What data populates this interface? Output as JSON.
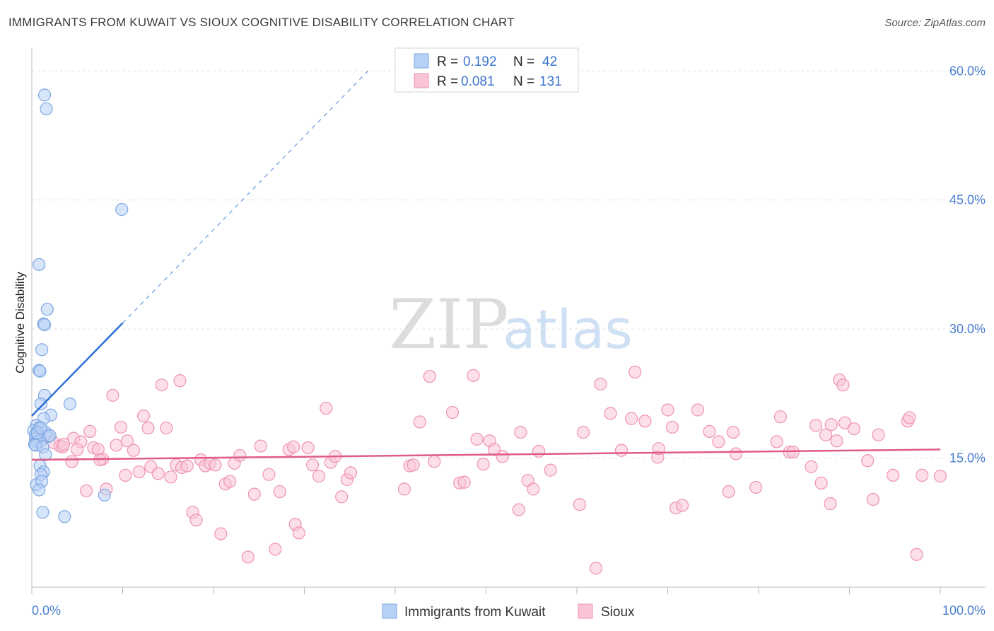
{
  "title": "IMMIGRANTS FROM KUWAIT VS SIOUX COGNITIVE DISABILITY CORRELATION CHART",
  "source": "Source: ZipAtlas.com",
  "watermark": {
    "zip": "ZIP",
    "atlas": "atlas"
  },
  "colors": {
    "blue_fill": "#b7d0f5",
    "blue_stroke": "#7ea7e2",
    "blue_line": "#2c6fd6",
    "pink_fill": "#f9c5d5",
    "pink_stroke": "#ee93b1",
    "pink_line": "#e05a8a"
  },
  "legend": {
    "r_label": "R =",
    "n_label": "N =",
    "series": [
      {
        "r": "0.192",
        "n": "42"
      },
      {
        "r": "0.081",
        "n": "131"
      }
    ]
  },
  "chart_data": {
    "type": "scatter",
    "title": "IMMIGRANTS FROM KUWAIT VS SIOUX COGNITIVE DISABILITY CORRELATION CHART",
    "xlabel": "",
    "ylabel": "Cognitive Disability",
    "xlim": [
      0,
      100
    ],
    "ylim": [
      0,
      62
    ],
    "x_tick_labels": [
      "0.0%",
      "100.0%"
    ],
    "y_ticks": [
      15,
      30,
      45,
      60
    ],
    "y_tick_labels": [
      "15.0%",
      "30.0%",
      "45.0%",
      "60.0%"
    ],
    "series": [
      {
        "name": "Immigrants from Kuwait",
        "r": 0.192,
        "n": 42,
        "trend": {
          "x_start": 0.0,
          "y_start": 19.9,
          "x_solid_end": 10.0,
          "y_solid_end": 30.7,
          "x_dash_end": 37.0,
          "y_dash_end": 60.0
        },
        "points": [
          [
            1.4,
            57.2
          ],
          [
            1.6,
            55.6
          ],
          [
            9.9,
            43.9
          ],
          [
            0.8,
            37.5
          ],
          [
            1.7,
            32.3
          ],
          [
            1.3,
            30.6
          ],
          [
            1.4,
            30.5
          ],
          [
            1.1,
            27.6
          ],
          [
            0.8,
            25.2
          ],
          [
            0.9,
            25.1
          ],
          [
            1.4,
            22.3
          ],
          [
            1.0,
            21.3
          ],
          [
            4.2,
            21.3
          ],
          [
            2.1,
            20.0
          ],
          [
            1.3,
            19.6
          ],
          [
            0.5,
            18.8
          ],
          [
            0.8,
            18.5
          ],
          [
            0.2,
            18.2
          ],
          [
            0.6,
            18.1
          ],
          [
            1.5,
            18.0
          ],
          [
            0.4,
            17.7
          ],
          [
            0.7,
            17.5
          ],
          [
            1.8,
            17.5
          ],
          [
            0.4,
            17.2
          ],
          [
            0.5,
            16.9
          ],
          [
            0.9,
            16.9
          ],
          [
            0.3,
            16.6
          ],
          [
            0.4,
            16.5
          ],
          [
            1.2,
            16.3
          ],
          [
            1.5,
            15.4
          ],
          [
            0.9,
            14.1
          ],
          [
            1.3,
            13.4
          ],
          [
            1.0,
            13.1
          ],
          [
            0.5,
            11.9
          ],
          [
            1.1,
            12.3
          ],
          [
            0.8,
            11.3
          ],
          [
            8.0,
            10.7
          ],
          [
            1.2,
            8.7
          ],
          [
            3.6,
            8.2
          ],
          [
            0.6,
            17.9
          ],
          [
            2.0,
            17.6
          ],
          [
            1.0,
            18.5
          ]
        ]
      },
      {
        "name": "Sioux",
        "r": 0.081,
        "n": 131,
        "trend": {
          "x_start": 0.0,
          "y_start": 14.8,
          "x_end": 100.0,
          "y_end": 16.0
        },
        "points": [
          [
            1.6,
            17.7
          ],
          [
            2.4,
            16.8
          ],
          [
            3.1,
            16.4
          ],
          [
            3.4,
            16.3
          ],
          [
            4.4,
            14.6
          ],
          [
            4.6,
            17.3
          ],
          [
            5.4,
            16.9
          ],
          [
            6.0,
            11.2
          ],
          [
            6.4,
            18.1
          ],
          [
            6.8,
            16.2
          ],
          [
            7.3,
            16.0
          ],
          [
            7.8,
            14.9
          ],
          [
            8.2,
            11.4
          ],
          [
            8.9,
            22.3
          ],
          [
            9.3,
            16.5
          ],
          [
            9.8,
            18.6
          ],
          [
            10.3,
            13.0
          ],
          [
            10.5,
            17.0
          ],
          [
            11.2,
            15.9
          ],
          [
            11.8,
            13.4
          ],
          [
            12.3,
            19.9
          ],
          [
            12.8,
            18.5
          ],
          [
            13.1,
            14.0
          ],
          [
            13.9,
            13.2
          ],
          [
            14.3,
            23.5
          ],
          [
            14.8,
            18.5
          ],
          [
            15.3,
            12.8
          ],
          [
            15.9,
            14.2
          ],
          [
            16.3,
            24.0
          ],
          [
            16.5,
            13.9
          ],
          [
            17.1,
            14.1
          ],
          [
            17.7,
            8.7
          ],
          [
            18.1,
            7.8
          ],
          [
            18.6,
            14.8
          ],
          [
            19.1,
            14.1
          ],
          [
            19.6,
            14.4
          ],
          [
            20.2,
            14.2
          ],
          [
            20.8,
            6.2
          ],
          [
            21.3,
            12.0
          ],
          [
            21.8,
            12.3
          ],
          [
            22.3,
            14.4
          ],
          [
            22.9,
            15.3
          ],
          [
            23.8,
            3.5
          ],
          [
            24.5,
            10.8
          ],
          [
            25.2,
            16.4
          ],
          [
            26.1,
            13.1
          ],
          [
            26.8,
            4.4
          ],
          [
            27.3,
            11.1
          ],
          [
            28.3,
            16.0
          ],
          [
            28.8,
            16.3
          ],
          [
            29.0,
            7.3
          ],
          [
            29.4,
            6.3
          ],
          [
            30.4,
            16.2
          ],
          [
            30.9,
            14.2
          ],
          [
            31.6,
            12.9
          ],
          [
            32.4,
            20.8
          ],
          [
            32.9,
            14.5
          ],
          [
            33.4,
            15.2
          ],
          [
            34.1,
            10.5
          ],
          [
            34.7,
            12.5
          ],
          [
            35.1,
            13.3
          ],
          [
            41.0,
            11.4
          ],
          [
            41.6,
            14.1
          ],
          [
            42.0,
            14.2
          ],
          [
            42.7,
            19.2
          ],
          [
            43.8,
            24.5
          ],
          [
            44.3,
            14.6
          ],
          [
            46.3,
            20.3
          ],
          [
            47.1,
            12.1
          ],
          [
            47.6,
            12.2
          ],
          [
            48.6,
            24.6
          ],
          [
            49.0,
            17.2
          ],
          [
            49.7,
            14.3
          ],
          [
            50.4,
            17.0
          ],
          [
            50.9,
            16.0
          ],
          [
            51.8,
            15.2
          ],
          [
            53.6,
            9.0
          ],
          [
            53.8,
            18.0
          ],
          [
            54.6,
            12.4
          ],
          [
            55.2,
            11.4
          ],
          [
            55.8,
            15.8
          ],
          [
            57.1,
            13.6
          ],
          [
            60.3,
            9.6
          ],
          [
            60.7,
            18.0
          ],
          [
            62.1,
            2.2
          ],
          [
            62.6,
            23.6
          ],
          [
            63.7,
            20.2
          ],
          [
            64.9,
            15.9
          ],
          [
            66.0,
            19.6
          ],
          [
            66.4,
            25.0
          ],
          [
            67.5,
            19.3
          ],
          [
            68.9,
            15.1
          ],
          [
            69.0,
            16.1
          ],
          [
            70.0,
            20.6
          ],
          [
            70.5,
            18.6
          ],
          [
            70.9,
            9.2
          ],
          [
            71.6,
            9.5
          ],
          [
            73.3,
            20.6
          ],
          [
            74.6,
            18.1
          ],
          [
            75.6,
            16.9
          ],
          [
            76.7,
            11.1
          ],
          [
            77.2,
            18.0
          ],
          [
            77.5,
            15.5
          ],
          [
            79.7,
            11.6
          ],
          [
            82.0,
            16.9
          ],
          [
            82.4,
            19.8
          ],
          [
            83.4,
            15.7
          ],
          [
            83.8,
            15.7
          ],
          [
            85.8,
            14.0
          ],
          [
            86.3,
            18.8
          ],
          [
            86.9,
            12.1
          ],
          [
            87.4,
            17.7
          ],
          [
            87.9,
            9.7
          ],
          [
            88.0,
            18.9
          ],
          [
            88.6,
            17.0
          ],
          [
            88.9,
            24.1
          ],
          [
            89.3,
            23.5
          ],
          [
            89.5,
            19.1
          ],
          [
            90.5,
            18.4
          ],
          [
            92.0,
            14.7
          ],
          [
            92.6,
            10.2
          ],
          [
            93.2,
            17.7
          ],
          [
            94.8,
            13.0
          ],
          [
            96.4,
            19.3
          ],
          [
            96.6,
            19.7
          ],
          [
            97.4,
            3.8
          ],
          [
            98.0,
            13.0
          ],
          [
            100.0,
            12.9
          ],
          [
            1.0,
            17.0
          ],
          [
            3.5,
            16.6
          ],
          [
            5.0,
            16.0
          ],
          [
            7.5,
            14.8
          ]
        ]
      }
    ]
  }
}
